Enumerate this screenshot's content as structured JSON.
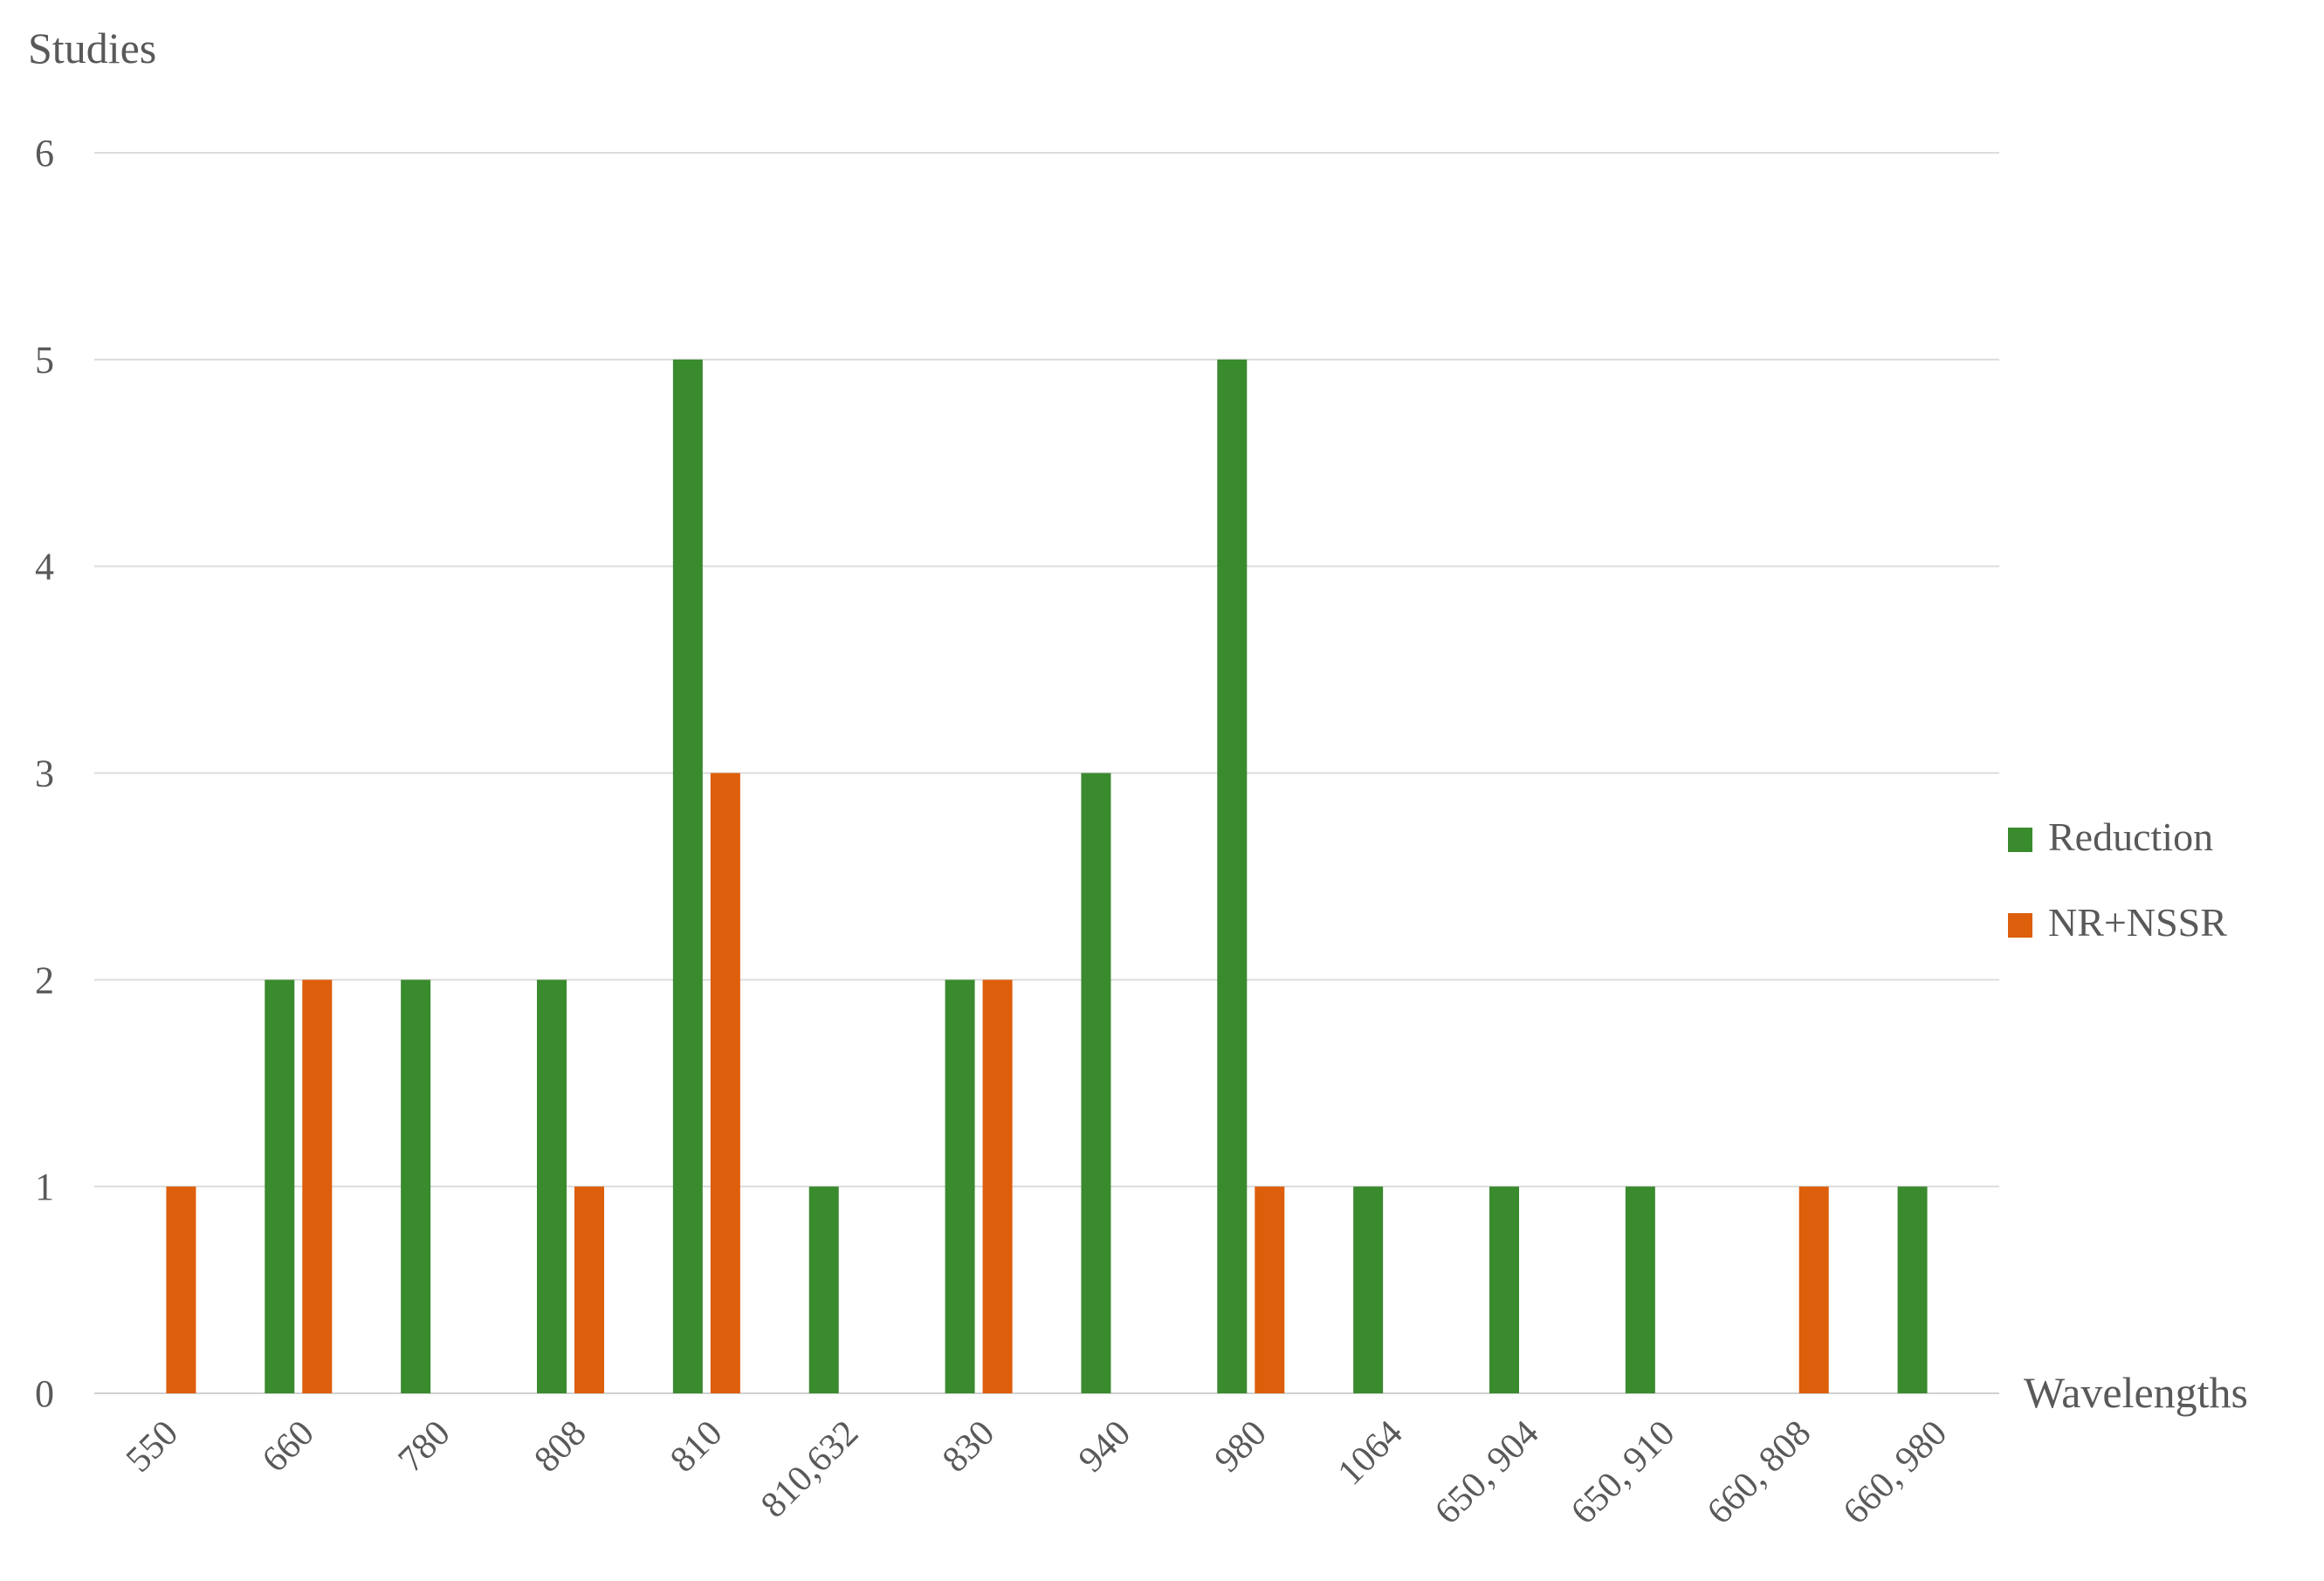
{
  "chart_data": {
    "type": "bar",
    "ylabel": "Studies",
    "xlabel": "Wavelengths",
    "categories": [
      "550",
      "660",
      "780",
      "808",
      "810",
      "810,632",
      "830",
      "940",
      "980",
      "1064",
      "650, 904",
      "650, 910",
      "660, 808",
      "660, 980"
    ],
    "series": [
      {
        "name": "Reduction",
        "color": "#3a8a2e",
        "values": [
          0,
          2,
          2,
          2,
          5,
          1,
          2,
          3,
          5,
          1,
          1,
          1,
          0,
          1
        ]
      },
      {
        "name": "NR+NSSR",
        "color": "#dd5e0b",
        "values": [
          1,
          2,
          0,
          1,
          3,
          0,
          2,
          0,
          1,
          0,
          0,
          0,
          1,
          0
        ]
      }
    ],
    "ylim": [
      0,
      6
    ],
    "yticks": [
      0,
      1,
      2,
      3,
      4,
      5,
      6
    ],
    "grid": true,
    "legend": "right"
  }
}
